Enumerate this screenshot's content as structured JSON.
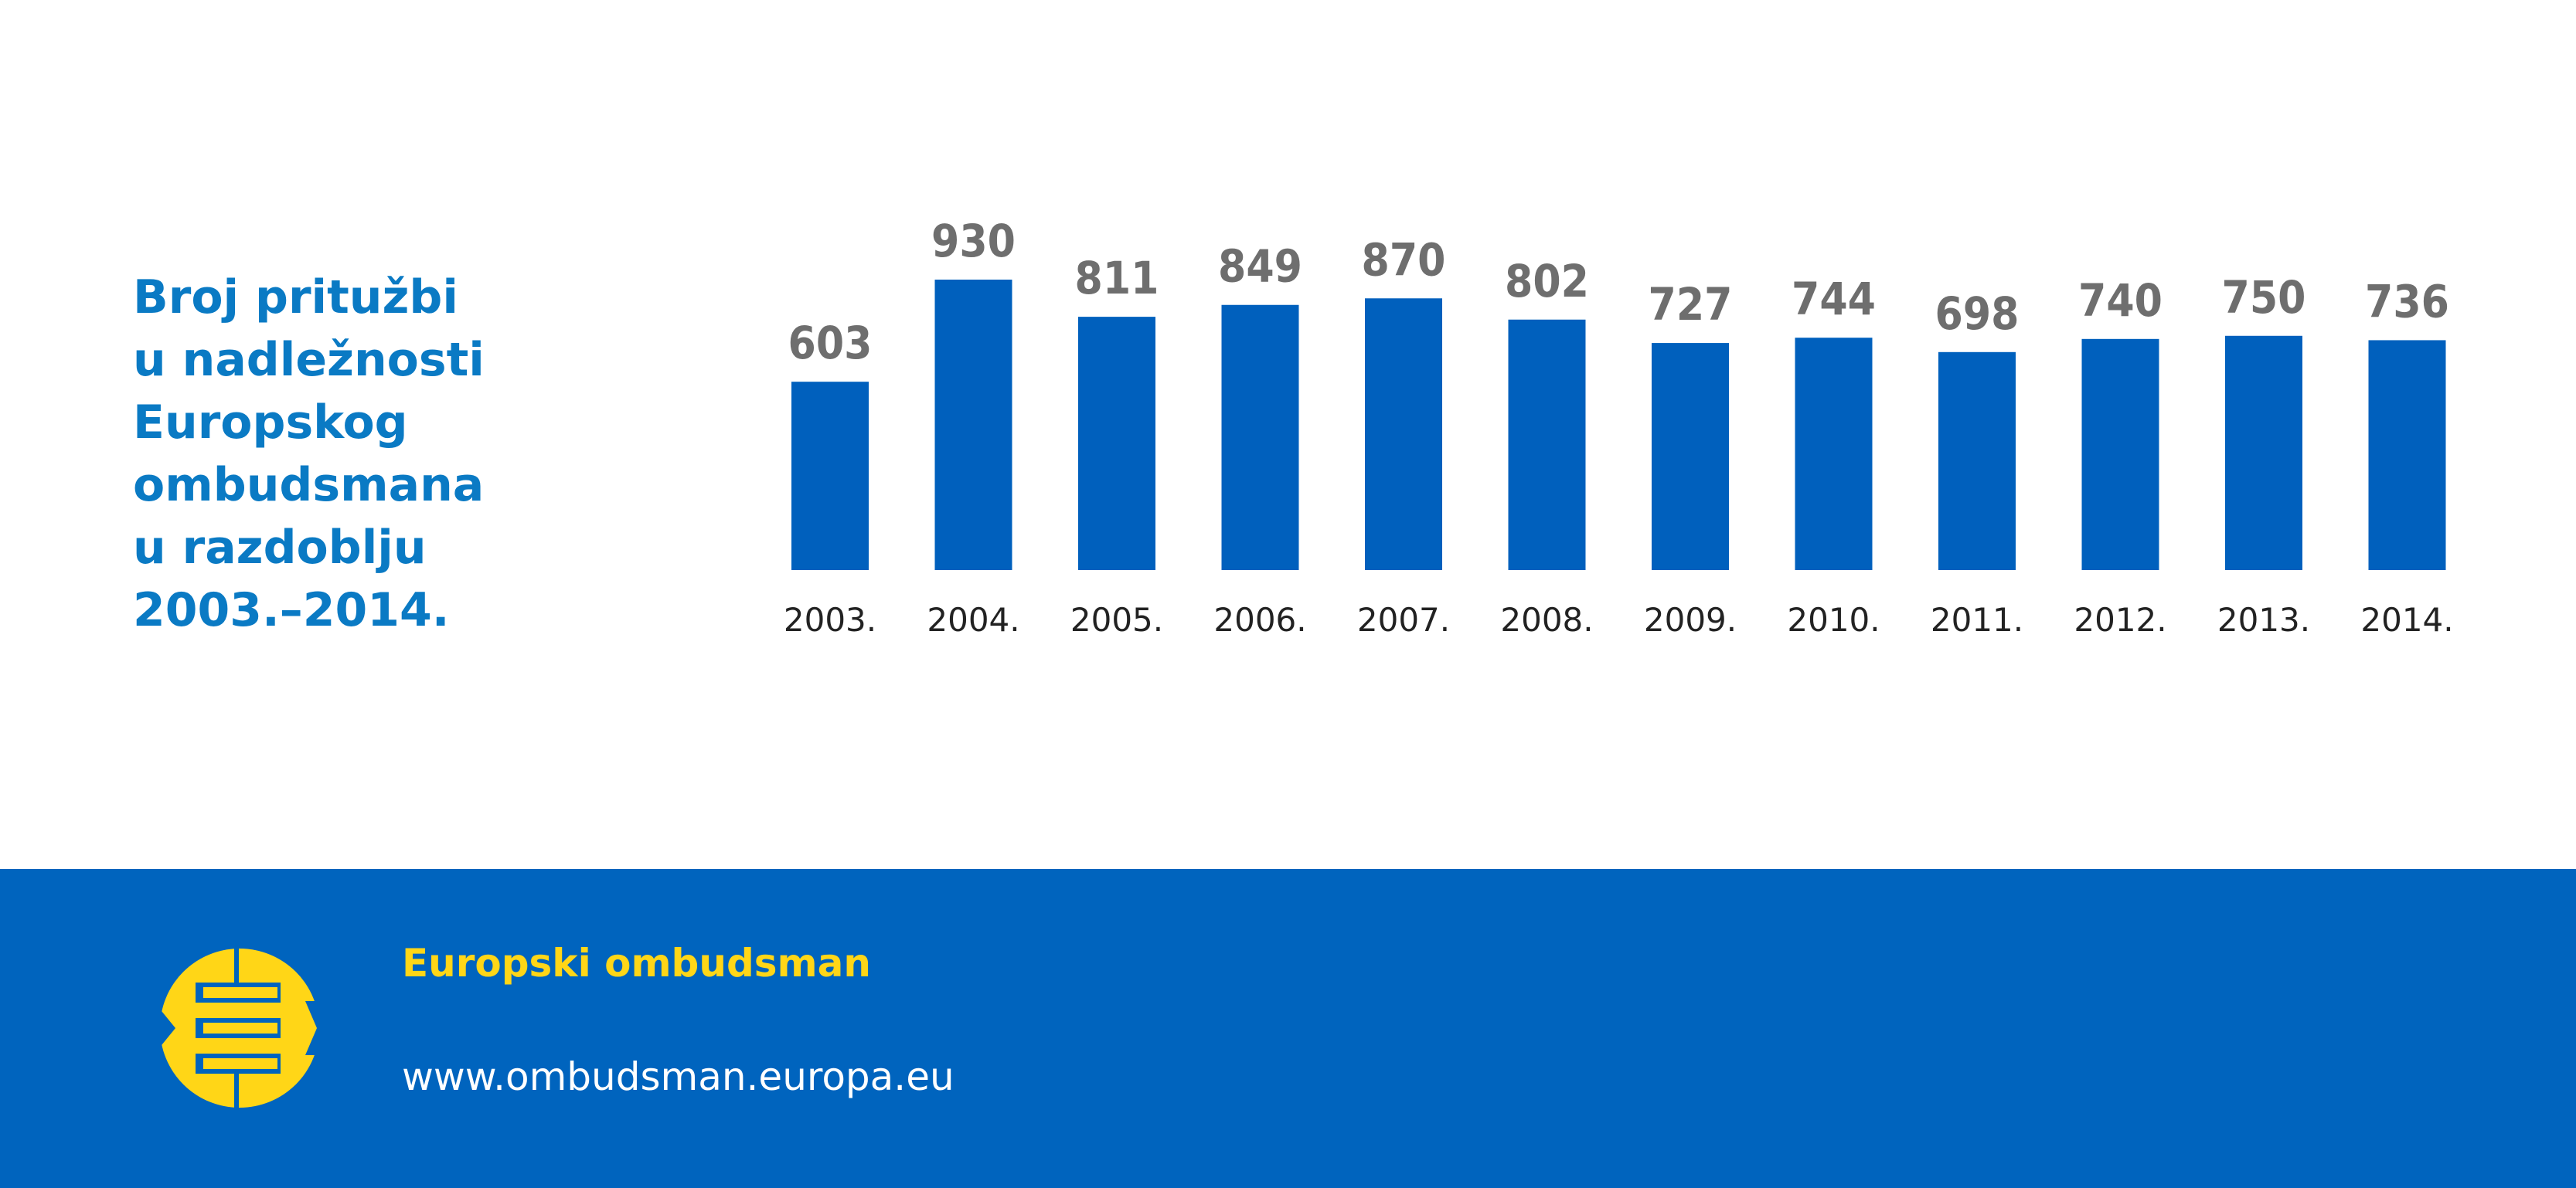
{
  "chart_data": {
    "type": "bar",
    "title_lines": [
      "Broj pritužbi",
      "u nadležnosti",
      "Europskog",
      "ombudsmana",
      "u razdoblju",
      "2003.–2014."
    ],
    "categories": [
      "2003.",
      "2004.",
      "2005.",
      "2006.",
      "2007.",
      "2008.",
      "2009.",
      "2010.",
      "2011.",
      "2012.",
      "2013.",
      "2014."
    ],
    "values": [
      603,
      930,
      811,
      849,
      870,
      802,
      727,
      744,
      698,
      740,
      750,
      736
    ],
    "ylim": [
      0,
      930
    ],
    "grid": false,
    "legend": null,
    "xlabel": "",
    "ylabel": ""
  },
  "footer": {
    "org_name": "Europski ombudsman",
    "url": "www.ombudsman.europa.eu"
  },
  "colors": {
    "bar": "#0060bd",
    "value_label": "#6e6e6e",
    "title": "#0a7ac4",
    "footer_bg": "#0064be",
    "accent_yellow": "#ffd617"
  }
}
